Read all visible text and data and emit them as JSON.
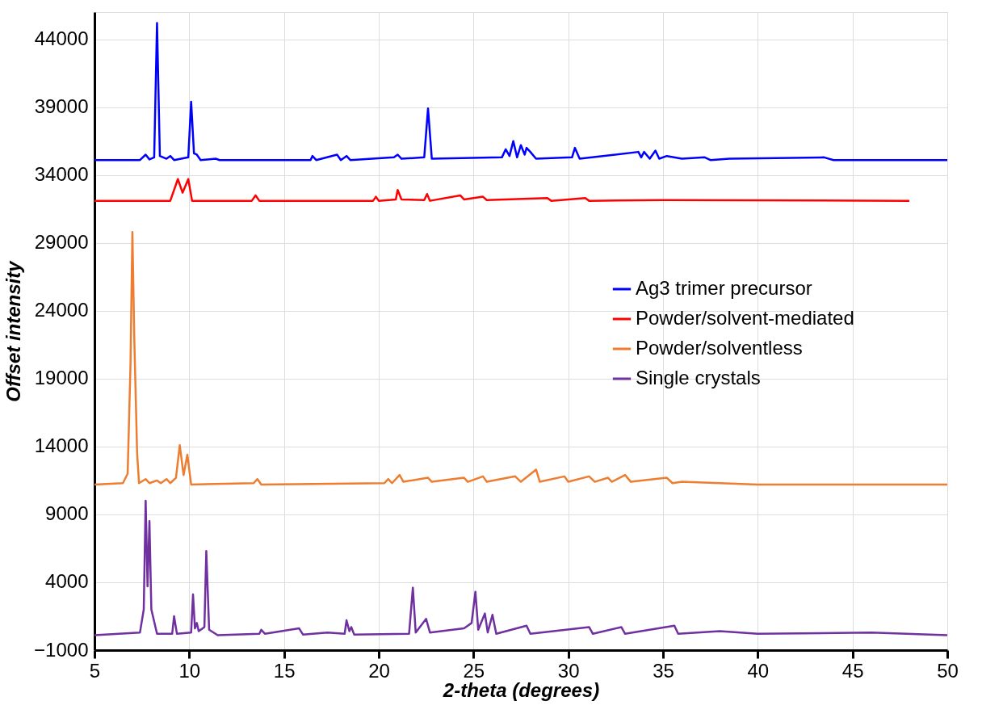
{
  "chart_data": {
    "type": "line",
    "xlabel": "2-theta (degrees)",
    "ylabel": "Offset intensity",
    "xlim": [
      5,
      50
    ],
    "xticks": [
      5,
      10,
      15,
      20,
      25,
      30,
      35,
      40,
      45,
      50
    ],
    "ylim": [
      -1000,
      46000
    ],
    "yticks": [
      -1000,
      4000,
      9000,
      14000,
      19000,
      24000,
      29000,
      34000,
      39000,
      44000
    ],
    "grid": true,
    "legend": "right",
    "marker": "none",
    "line_style": "solid",
    "series": [
      {
        "name": "Ag3 trimer precursor",
        "color": "#0000ff",
        "x": [
          5,
          7.4,
          7.7,
          7.9,
          8.15,
          8.3,
          8.45,
          8.8,
          9.0,
          9.2,
          9.95,
          10.1,
          10.25,
          10.4,
          10.6,
          11.4,
          11.6,
          16.4,
          16.5,
          16.7,
          17.8,
          18.0,
          18.3,
          18.5,
          20.8,
          21.0,
          21.2,
          22.4,
          22.6,
          22.8,
          26.5,
          26.7,
          26.9,
          27.1,
          27.3,
          27.5,
          27.7,
          27.8,
          28.0,
          28.3,
          30.2,
          30.35,
          30.6,
          33.7,
          33.85,
          34.0,
          34.3,
          34.6,
          34.8,
          35.2,
          36,
          37.2,
          37.5,
          38.5,
          43.5,
          44,
          50
        ],
        "values": [
          35100,
          35100,
          35500,
          35150,
          35300,
          45200,
          35400,
          35200,
          35400,
          35100,
          35300,
          39400,
          35600,
          35500,
          35100,
          35200,
          35100,
          35100,
          35400,
          35100,
          35500,
          35100,
          35400,
          35100,
          35300,
          35500,
          35200,
          35300,
          38900,
          35200,
          35300,
          35900,
          35400,
          36500,
          35300,
          36200,
          35500,
          36000,
          35700,
          35200,
          35300,
          36000,
          35200,
          35700,
          35300,
          35700,
          35200,
          35800,
          35200,
          35400,
          35200,
          35300,
          35100,
          35200,
          35300,
          35100,
          35100
        ]
      },
      {
        "name": "Powder/solvent-mediated",
        "color": "#ff0000",
        "x": [
          5,
          9.0,
          9.4,
          9.65,
          9.95,
          10.15,
          13.3,
          13.5,
          13.7,
          19.7,
          19.85,
          20,
          20.9,
          21.0,
          21.2,
          22.4,
          22.55,
          22.7,
          24.3,
          24.5,
          25.5,
          25.7,
          28.9,
          29.1,
          30.9,
          31.1,
          35,
          48
        ],
        "values": [
          32100,
          32100,
          33700,
          32700,
          33700,
          32100,
          32100,
          32500,
          32100,
          32100,
          32400,
          32100,
          32200,
          32900,
          32200,
          32150,
          32600,
          32100,
          32500,
          32200,
          32400,
          32150,
          32300,
          32100,
          32300,
          32100,
          32150,
          32100
        ]
      },
      {
        "name": "Powder/solventless",
        "color": "#ed7d31",
        "x": [
          5,
          6.5,
          6.75,
          6.9,
          7.0,
          7.1,
          7.25,
          7.35,
          7.7,
          7.9,
          8.3,
          8.5,
          8.8,
          9.0,
          9.3,
          9.5,
          9.7,
          9.9,
          10.1,
          13.4,
          13.6,
          13.8,
          20.3,
          20.5,
          20.7,
          21.1,
          21.3,
          22.6,
          22.8,
          24.5,
          24.7,
          25.5,
          25.7,
          27.2,
          27.5,
          28.3,
          28.5,
          29.8,
          30,
          31.1,
          31.4,
          32.1,
          32.3,
          33,
          33.3,
          35.2,
          35.5,
          36,
          40,
          45,
          50
        ],
        "values": [
          11200,
          11300,
          12000,
          20000,
          29800,
          22000,
          13500,
          11300,
          11600,
          11300,
          11500,
          11300,
          11600,
          11300,
          11700,
          14100,
          11900,
          13400,
          11200,
          11300,
          11600,
          11200,
          11300,
          11600,
          11300,
          11900,
          11400,
          11700,
          11400,
          11700,
          11400,
          11800,
          11400,
          11800,
          11400,
          12300,
          11400,
          11800,
          11400,
          11800,
          11400,
          11700,
          11400,
          11900,
          11400,
          11700,
          11300,
          11400,
          11200,
          11200,
          11200
        ]
      },
      {
        "name": "Single crystals",
        "color": "#7030a0",
        "x": [
          5,
          7.4,
          7.6,
          7.7,
          7.8,
          7.9,
          8.0,
          8.3,
          9.1,
          9.2,
          9.35,
          10.1,
          10.2,
          10.3,
          10.4,
          10.5,
          10.8,
          10.9,
          11.05,
          11.5,
          13.7,
          13.8,
          14.0,
          15.8,
          16,
          17.3,
          18.2,
          18.3,
          18.45,
          18.55,
          18.7,
          21.6,
          21.8,
          21.95,
          22.5,
          22.7,
          24.5,
          24.7,
          24.9,
          25.1,
          25.25,
          25.6,
          25.75,
          26.0,
          26.2,
          27.8,
          28.0,
          31.1,
          31.3,
          32.8,
          33,
          35.6,
          35.8,
          38,
          40,
          46,
          50
        ],
        "values": [
          100,
          300,
          2000,
          10000,
          3700,
          8500,
          2000,
          200,
          200,
          1500,
          200,
          300,
          3100,
          600,
          1000,
          400,
          700,
          6300,
          500,
          100,
          200,
          500,
          200,
          600,
          150,
          300,
          200,
          1200,
          400,
          700,
          150,
          200,
          3600,
          300,
          1300,
          300,
          600,
          800,
          1000,
          3300,
          500,
          1700,
          300,
          1600,
          200,
          800,
          200,
          700,
          200,
          700,
          200,
          800,
          200,
          400,
          200,
          300,
          100
        ]
      }
    ]
  }
}
